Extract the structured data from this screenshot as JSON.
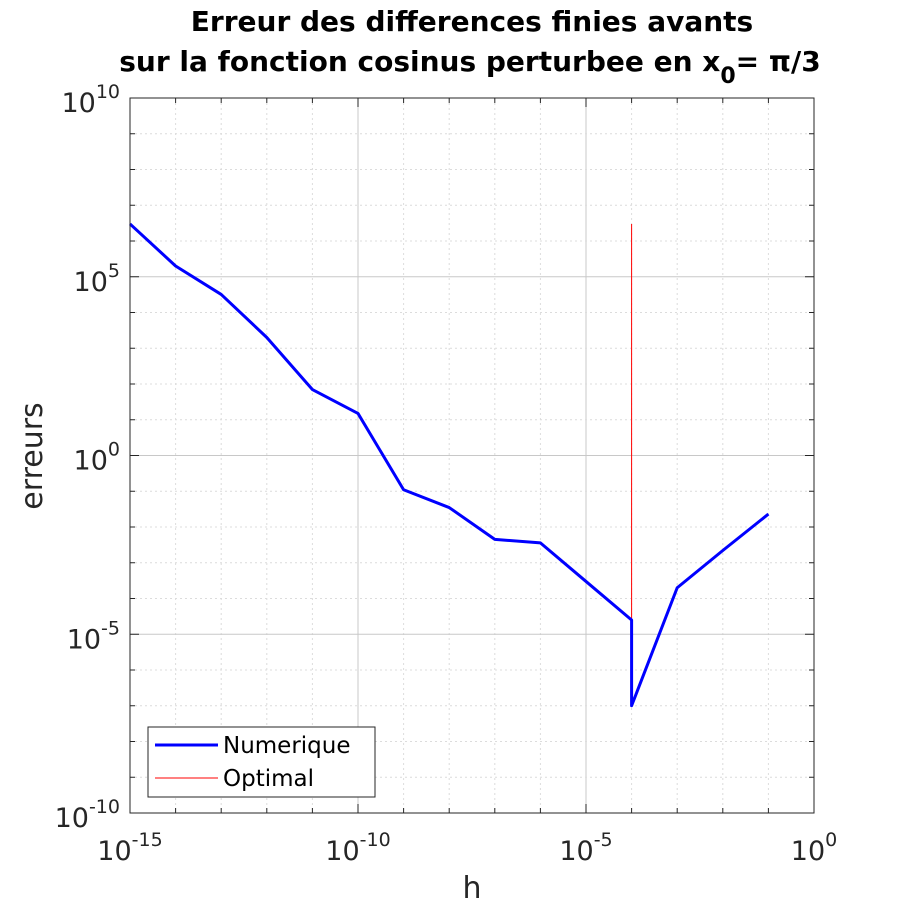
{
  "chart_data": {
    "type": "line",
    "title_line1": "Erreur des differences finies avants",
    "title_line2_prefix": "sur la fonction cosinus perturbee en x",
    "title_subscript": "0",
    "title_line2_suffix": "= π/3",
    "xlabel": "h",
    "ylabel": "erreurs",
    "x_scale": "log",
    "y_scale": "log",
    "xlim": [
      1e-15,
      1
    ],
    "ylim": [
      1e-10,
      10000000000.0
    ],
    "grid": true,
    "legend_position": "bottom-left",
    "x_ticks": [
      {
        "base": "10",
        "exp": "-15",
        "value": 1e-15
      },
      {
        "base": "10",
        "exp": "-10",
        "value": 1e-10
      },
      {
        "base": "10",
        "exp": "-5",
        "value": 1e-05
      },
      {
        "base": "10",
        "exp": "0",
        "value": 1
      }
    ],
    "y_ticks": [
      {
        "base": "10",
        "exp": "10",
        "value": 10000000000.0
      },
      {
        "base": "10",
        "exp": "5",
        "value": 100000.0
      },
      {
        "base": "10",
        "exp": "0",
        "value": 1
      },
      {
        "base": "10",
        "exp": "-5",
        "value": 1e-05
      },
      {
        "base": "10",
        "exp": "-10",
        "value": 1e-10
      }
    ],
    "series": [
      {
        "name": "Numerique",
        "color": "#0000ff",
        "x": [
          1e-15,
          1e-14,
          1e-13,
          1e-12,
          1e-11,
          1e-10,
          1e-09,
          1e-08,
          1e-07,
          1e-06,
          1e-05,
          0.0001,
          0.0001,
          0.001,
          0.01,
          0.1
        ],
        "y": [
          3000000.0,
          200000.0,
          32000.0,
          2000.0,
          70,
          15,
          0.11,
          0.035,
          0.0045,
          0.0036,
          0.0003,
          2.5e-05,
          1e-07,
          0.0002,
          0.0022,
          0.023
        ]
      },
      {
        "name": "Optimal",
        "color": "#ff0000",
        "x": [
          0.0001,
          0.0001
        ],
        "y": [
          1e-07,
          3000000.0
        ]
      }
    ]
  }
}
